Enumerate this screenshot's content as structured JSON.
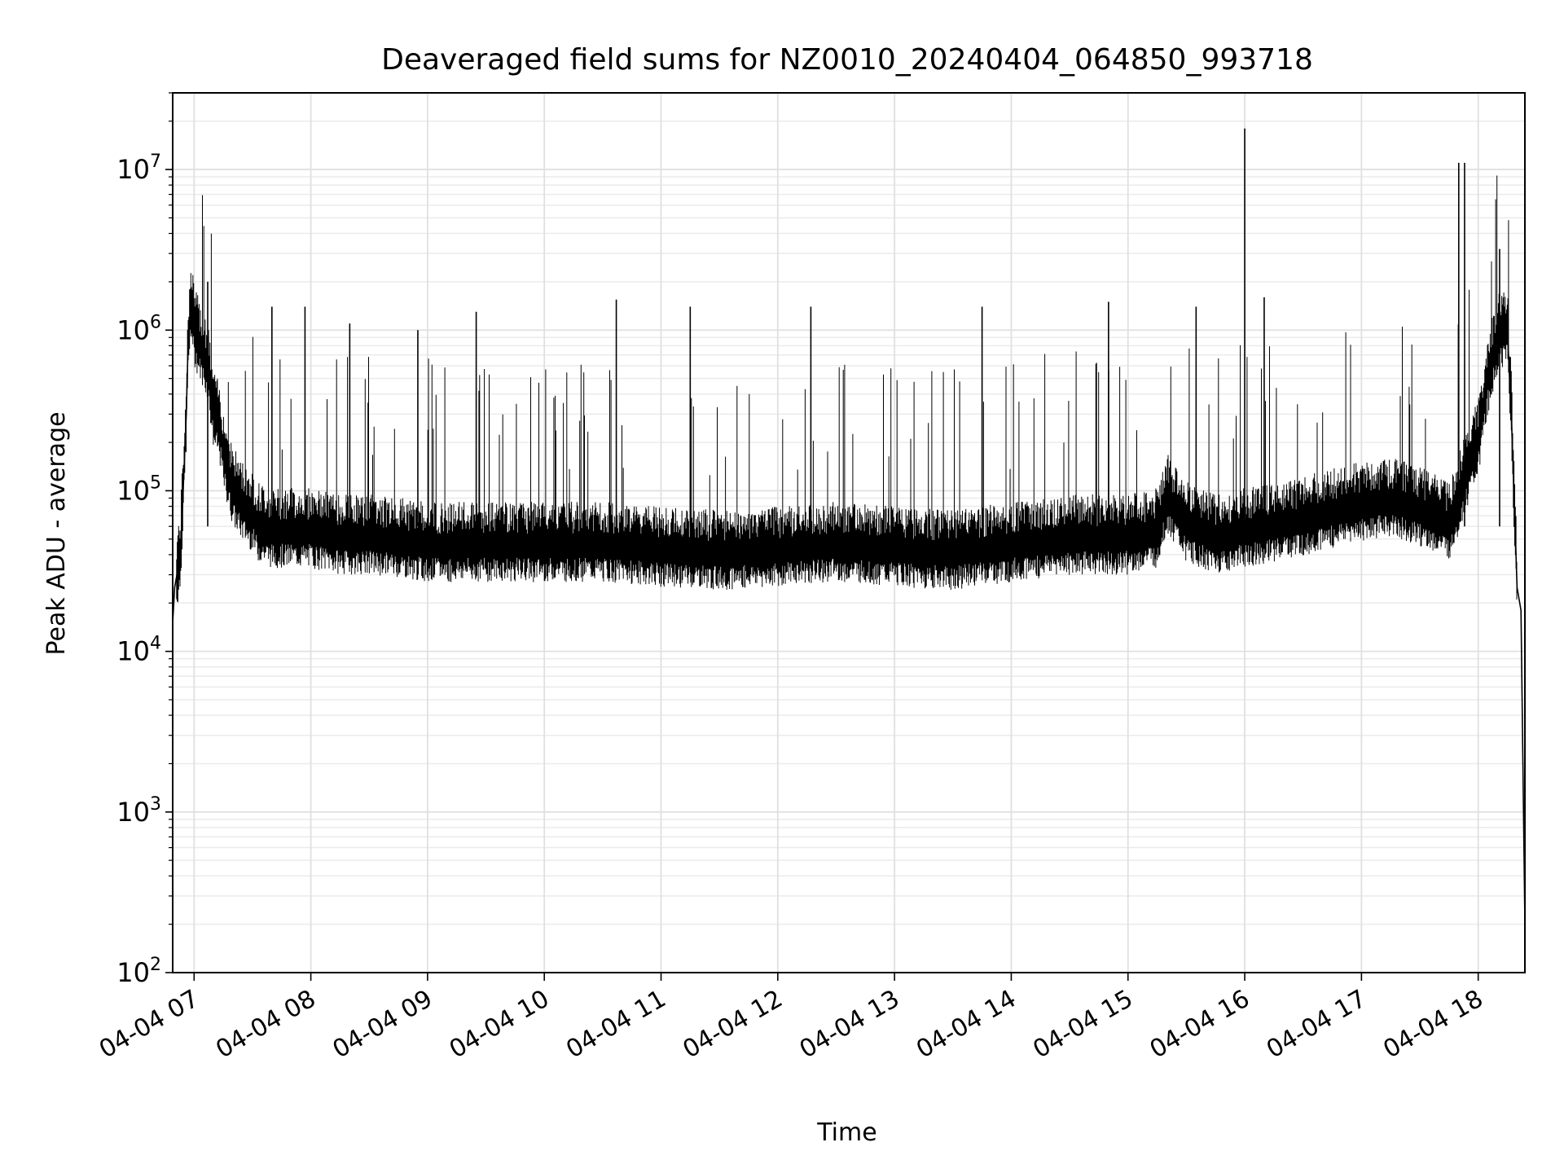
{
  "chart_data": {
    "type": "line",
    "title": "Deaveraged field sums for NZ0010_20240404_064850_993718",
    "xlabel": "Time",
    "ylabel": "Peak ADU - average",
    "yscale": "log",
    "ylim": [
      100,
      30000000
    ],
    "xlim": [
      "2024-04-04 06:49",
      "2024-04-04 18:24"
    ],
    "grid": true,
    "x_ticks": [
      {
        "value": "2024-04-04 07:00",
        "label": "04-04 07"
      },
      {
        "value": "2024-04-04 08:00",
        "label": "04-04 08"
      },
      {
        "value": "2024-04-04 09:00",
        "label": "04-04 09"
      },
      {
        "value": "2024-04-04 10:00",
        "label": "04-04 10"
      },
      {
        "value": "2024-04-04 11:00",
        "label": "04-04 11"
      },
      {
        "value": "2024-04-04 12:00",
        "label": "04-04 12"
      },
      {
        "value": "2024-04-04 13:00",
        "label": "04-04 13"
      },
      {
        "value": "2024-04-04 14:00",
        "label": "04-04 14"
      },
      {
        "value": "2024-04-04 15:00",
        "label": "04-04 15"
      },
      {
        "value": "2024-04-04 16:00",
        "label": "04-04 16"
      },
      {
        "value": "2024-04-04 17:00",
        "label": "04-04 17"
      },
      {
        "value": "2024-04-04 18:00",
        "label": "04-04 18"
      }
    ],
    "y_ticks": [
      {
        "value": 100,
        "base": "10",
        "exp": "2"
      },
      {
        "value": 1000,
        "base": "10",
        "exp": "3"
      },
      {
        "value": 10000,
        "base": "10",
        "exp": "4"
      },
      {
        "value": 100000,
        "base": "10",
        "exp": "5"
      },
      {
        "value": 1000000,
        "base": "10",
        "exp": "6"
      },
      {
        "value": 10000000,
        "base": "10",
        "exp": "7"
      }
    ],
    "series": [
      {
        "color": "#000000",
        "x": [
          "2024-04-04 06:49",
          "2024-04-04 06:50",
          "2024-04-04 06:53",
          "2024-04-04 06:56",
          "2024-04-04 06:57",
          "2024-04-04 06:58",
          "2024-04-04 06:59",
          "2024-04-04 07:00",
          "2024-04-04 07:03",
          "2024-04-04 07:05",
          "2024-04-04 07:07",
          "2024-04-04 07:10",
          "2024-04-04 07:13",
          "2024-04-04 07:16",
          "2024-04-04 07:20",
          "2024-04-04 07:25",
          "2024-04-04 07:30",
          "2024-04-04 07:33",
          "2024-04-04 07:40",
          "2024-04-04 07:50",
          "2024-04-04 08:00",
          "2024-04-04 08:15",
          "2024-04-04 08:30",
          "2024-04-04 08:45",
          "2024-04-04 09:00",
          "2024-04-04 09:30",
          "2024-04-04 10:00",
          "2024-04-04 10:30",
          "2024-04-04 11:00",
          "2024-04-04 11:30",
          "2024-04-04 12:00",
          "2024-04-04 12:30",
          "2024-04-04 13:00",
          "2024-04-04 13:30",
          "2024-04-04 14:00",
          "2024-04-04 14:30",
          "2024-04-04 15:00",
          "2024-04-04 15:15",
          "2024-04-04 15:20",
          "2024-04-04 15:30",
          "2024-04-04 15:45",
          "2024-04-04 16:00",
          "2024-04-04 16:30",
          "2024-04-04 17:00",
          "2024-04-04 17:15",
          "2024-04-04 17:30",
          "2024-04-04 17:45",
          "2024-04-04 18:00",
          "2024-04-04 18:05",
          "2024-04-04 18:10",
          "2024-04-04 18:15",
          "2024-04-04 18:17",
          "2024-04-04 18:20",
          "2024-04-04 18:22",
          "2024-04-04 18:24"
        ],
        "y": [
          15000,
          25000,
          40000,
          300000,
          900000,
          1200000,
          1400000,
          1000000,
          800000,
          700000,
          600000,
          300000,
          250000,
          150000,
          100000,
          80000,
          70000,
          60000,
          55000,
          55000,
          55000,
          50000,
          50000,
          48000,
          45000,
          45000,
          45000,
          45000,
          42000,
          40000,
          42000,
          45000,
          42000,
          40000,
          45000,
          50000,
          50000,
          55000,
          90000,
          60000,
          50000,
          55000,
          65000,
          80000,
          85000,
          75000,
          60000,
          200000,
          500000,
          900000,
          1000000,
          300000,
          25000,
          18000,
          200
        ]
      }
    ],
    "spikes": [
      {
        "x": "2024-04-04 07:07",
        "y": 2000000
      },
      {
        "x": "2024-04-04 07:40",
        "y": 1400000
      },
      {
        "x": "2024-04-04 07:57",
        "y": 1400000
      },
      {
        "x": "2024-04-04 08:20",
        "y": 1100000
      },
      {
        "x": "2024-04-04 08:55",
        "y": 1000000
      },
      {
        "x": "2024-04-04 09:25",
        "y": 1300000
      },
      {
        "x": "2024-04-04 10:37",
        "y": 1550000
      },
      {
        "x": "2024-04-04 11:15",
        "y": 1400000
      },
      {
        "x": "2024-04-04 12:17",
        "y": 1400000
      },
      {
        "x": "2024-04-04 13:45",
        "y": 1400000
      },
      {
        "x": "2024-04-04 14:50",
        "y": 1500000
      },
      {
        "x": "2024-04-04 15:35",
        "y": 1400000
      },
      {
        "x": "2024-04-04 16:00",
        "y": 18000000
      },
      {
        "x": "2024-04-04 16:10",
        "y": 1600000
      },
      {
        "x": "2024-04-04 17:50",
        "y": 11000000
      },
      {
        "x": "2024-04-04 17:53",
        "y": 11000000
      },
      {
        "x": "2024-04-04 18:11",
        "y": 3200000
      }
    ]
  }
}
